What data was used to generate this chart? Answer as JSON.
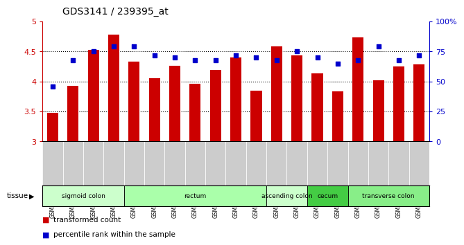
{
  "title": "GDS3141 / 239395_at",
  "samples": [
    "GSM234909",
    "GSM234910",
    "GSM234916",
    "GSM234926",
    "GSM234911",
    "GSM234914",
    "GSM234915",
    "GSM234923",
    "GSM234924",
    "GSM234925",
    "GSM234927",
    "GSM234913",
    "GSM234918",
    "GSM234919",
    "GSM234912",
    "GSM234917",
    "GSM234920",
    "GSM234921",
    "GSM234922"
  ],
  "bar_values": [
    3.48,
    3.93,
    4.53,
    4.78,
    4.33,
    4.05,
    4.26,
    3.96,
    4.19,
    4.4,
    3.85,
    4.58,
    4.44,
    4.13,
    3.83,
    4.73,
    4.02,
    4.25,
    4.28
  ],
  "dot_values": [
    46,
    68,
    75,
    79,
    79,
    72,
    70,
    68,
    68,
    72,
    70,
    68,
    75,
    70,
    65,
    68,
    79,
    68,
    72
  ],
  "ylim_left": [
    3.0,
    5.0
  ],
  "ylim_right": [
    0,
    100
  ],
  "yticks_left": [
    3.0,
    3.5,
    4.0,
    4.5,
    5.0
  ],
  "yticks_right": [
    0,
    25,
    50,
    75,
    100
  ],
  "ytick_labels_left": [
    "3",
    "3.5",
    "4",
    "4.5",
    "5"
  ],
  "ytick_labels_right": [
    "0",
    "25",
    "50",
    "75",
    "100%"
  ],
  "bar_color": "#cc0000",
  "dot_color": "#0000cc",
  "bar_bottom": 3.0,
  "tissue_groups": [
    {
      "label": "sigmoid colon",
      "start": 0,
      "end": 4,
      "color": "#ccffcc"
    },
    {
      "label": "rectum",
      "start": 4,
      "end": 11,
      "color": "#aaffaa"
    },
    {
      "label": "ascending colon",
      "start": 11,
      "end": 13,
      "color": "#ccffcc"
    },
    {
      "label": "cecum",
      "start": 13,
      "end": 15,
      "color": "#44cc44"
    },
    {
      "label": "transverse colon",
      "start": 15,
      "end": 19,
      "color": "#88ee88"
    }
  ],
  "legend_bar_label": "transformed count",
  "legend_dot_label": "percentile rank within the sample",
  "xlabel_tissue": "tissue",
  "bg_color": "#ffffff",
  "label_bg_color": "#cccccc"
}
